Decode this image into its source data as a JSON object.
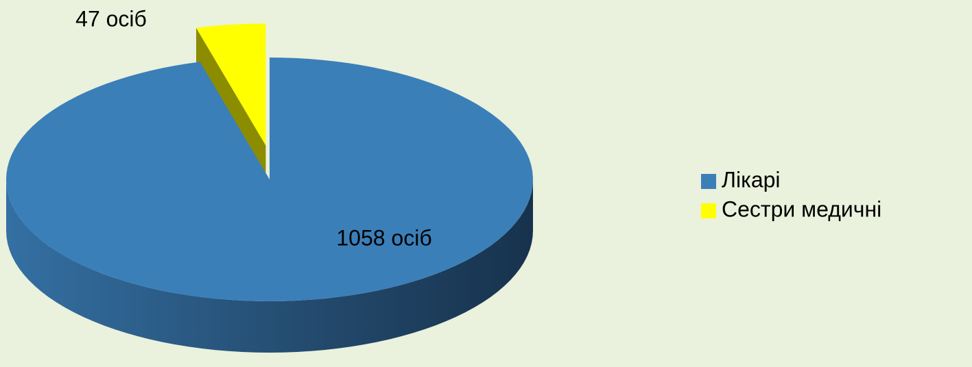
{
  "chart_data": {
    "type": "pie",
    "categories": [
      "Лікарі",
      "Сестри медичні"
    ],
    "values": [
      1058,
      47
    ],
    "value_labels": [
      "1058 осіб",
      "47 осіб"
    ],
    "colors": [
      "#3b7fb9",
      "#ffff00"
    ],
    "legend": "right"
  }
}
